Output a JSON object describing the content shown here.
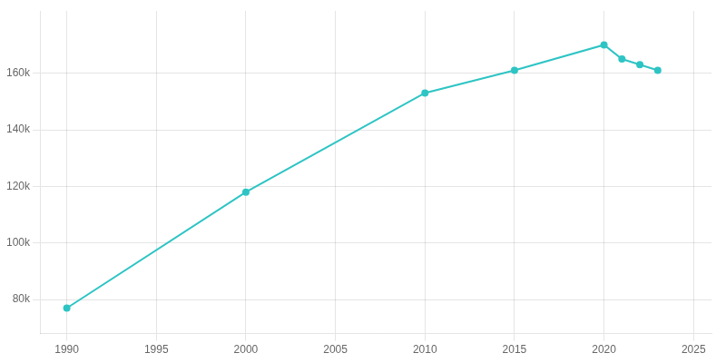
{
  "chart_data": {
    "type": "line",
    "x": [
      1990,
      2000,
      2010,
      2015,
      2020,
      2021,
      2022,
      2023
    ],
    "values": [
      77000,
      118000,
      153000,
      161000,
      170000,
      165000,
      163000,
      161000
    ],
    "color": "#2EC4C4",
    "marker": "circle",
    "xlim": [
      1988.5,
      2026
    ],
    "ylim": [
      68000,
      182000
    ],
    "xticks": [
      1990,
      1995,
      2000,
      2005,
      2010,
      2015,
      2020,
      2025
    ],
    "yticks": [
      {
        "value": 80000,
        "label": "80k"
      },
      {
        "value": 100000,
        "label": "100k"
      },
      {
        "value": 120000,
        "label": "120k"
      },
      {
        "value": 140000,
        "label": "140k"
      },
      {
        "value": 160000,
        "label": "160k"
      }
    ],
    "grid": true
  }
}
